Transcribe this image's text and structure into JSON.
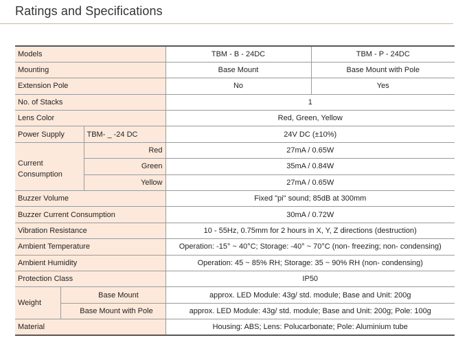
{
  "title": "Ratings and Specifications",
  "table": {
    "models_label": "Models",
    "model_b": "TBM - B - 24DC",
    "model_p": "TBM - P - 24DC",
    "mounting_label": "Mounting",
    "mounting_b": "Base Mount",
    "mounting_p": "Base Mount with Pole",
    "extension_pole_label": "Extension Pole",
    "extension_pole_b": "No",
    "extension_pole_p": "Yes",
    "stacks_label": "No. of Stacks",
    "stacks_value": "1",
    "lens_color_label": "Lens Color",
    "lens_color_value": "Red, Green, Yellow",
    "power_supply_label": "Power Supply",
    "power_supply_sub": "TBM- _ -24 DC",
    "power_supply_value": "24V DC (±10%)",
    "current_label_line1": "Current",
    "current_label_line2": "Consumption",
    "current_red_label": "Red",
    "current_red_value": "27mA / 0.65W",
    "current_green_label": "Green",
    "current_green_value": "35mA / 0.84W",
    "current_yellow_label": "Yellow",
    "current_yellow_value": "27mA / 0.65W",
    "buzzer_volume_label": "Buzzer Volume",
    "buzzer_volume_value": "Fixed \"pi\" sound; 85dB at 300mm",
    "buzzer_current_label": "Buzzer Current Consumption",
    "buzzer_current_value": "30mA / 0.72W",
    "vibration_label": "Vibration Resistance",
    "vibration_value": "10 - 55Hz, 0.75mm for 2 hours in X, Y, Z directions (destruction)",
    "ambient_temp_label": "Ambient Temperature",
    "ambient_temp_value": "Operation: -15° ~ 40°C; Storage: -40° ~ 70°C (non- freezing; non- condensing)",
    "ambient_humidity_label": "Ambient Humidity",
    "ambient_humidity_value": "Operation: 45 ~ 85% RH; Storage: 35 ~ 90% RH (non- condensing)",
    "protection_label": "Protection Class",
    "protection_value": "IP50",
    "weight_label": "Weight",
    "weight_base_label": "Base Mount",
    "weight_base_value": "approx. LED Module: 43g/ std. module; Base and Unit: 200g",
    "weight_pole_label": "Base Mount with Pole",
    "weight_pole_value": "approx. LED Module: 43g/ std. module; Base and Unit: 200g; Pole: 100g",
    "material_label": "Material",
    "material_value": "Housing: ABS; Lens: Polucarbonate; Pole: Aluminium tube"
  }
}
